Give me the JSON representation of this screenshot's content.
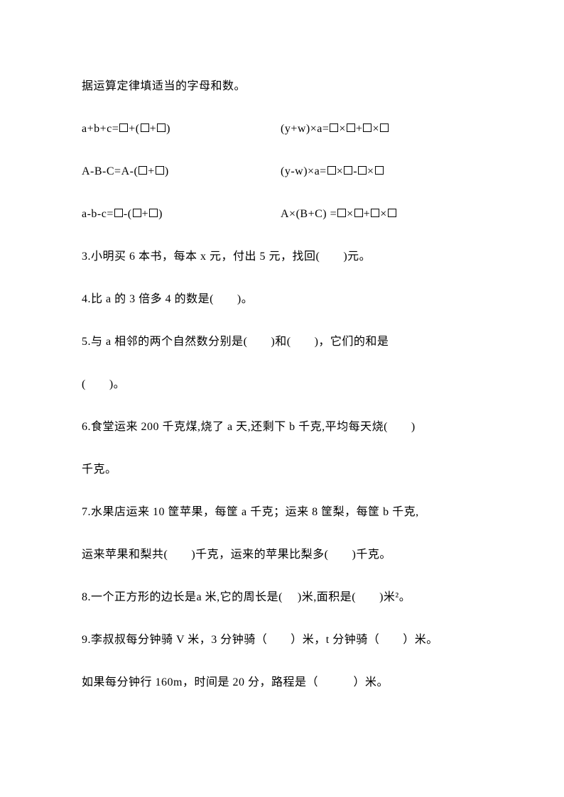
{
  "title": "据运算定律填适当的字母和数。",
  "equations": [
    {
      "left_pre": " a+b+c=",
      "left_mid": "+(",
      "left_sep": "+",
      "left_post": ")",
      "right_pre": "(y+w)×a=",
      "right_s1": "×",
      "right_s2": "+",
      "right_s3": "×",
      "right_post": ""
    },
    {
      "left_pre": "A-B-C=A-(",
      "left_mid": "",
      "left_sep": "+",
      "left_post": ")",
      "right_pre": "(y-w)×a=",
      "right_s1": "×",
      "right_s2": "-",
      "right_s3": "×",
      "right_post": ""
    },
    {
      "left_pre": "a-b-c=",
      "left_mid": "-(",
      "left_sep": "+",
      "left_post": ")",
      "right_pre": "A×(B+C) =",
      "right_s1": "×",
      "right_s2": "+",
      "right_s3": "×",
      "right_post": ""
    }
  ],
  "q3": "3.小明买 6 本书，每本 x 元，付出 5 元，找回(　　)元。",
  "q4": "4.比 a 的 3 倍多 4 的数是(　　)。",
  "q5a": "5.与 a 相邻的两个自然数分别是(　　)和(　　)，它们的和是",
  "q5b": "(　　)。",
  "q6a": "6.食堂运来 200 千克煤,烧了 a 天,还剩下 b 千克,平均每天烧(　　)",
  "q6b": "千克。",
  "q7a": "7.水果店运来 10 筐苹果，每筐 a 千克；运来 8 筐梨，每筐 b 千克,",
  "q7b": "运来苹果和梨共(　　)千克，运来的苹果比梨多(　　)千克。",
  "q8": "8.一个正方形的边长是a 米,它的周长是(　 )米,面积是(　　)米²。",
  "q9a": "9.李叔叔每分钟骑 V 米，3 分钟骑（　　）米，t 分钟骑（　　）米。",
  "q9b": "如果每分钟行 160m，时间是 20 分，路程是（　　　）米。"
}
